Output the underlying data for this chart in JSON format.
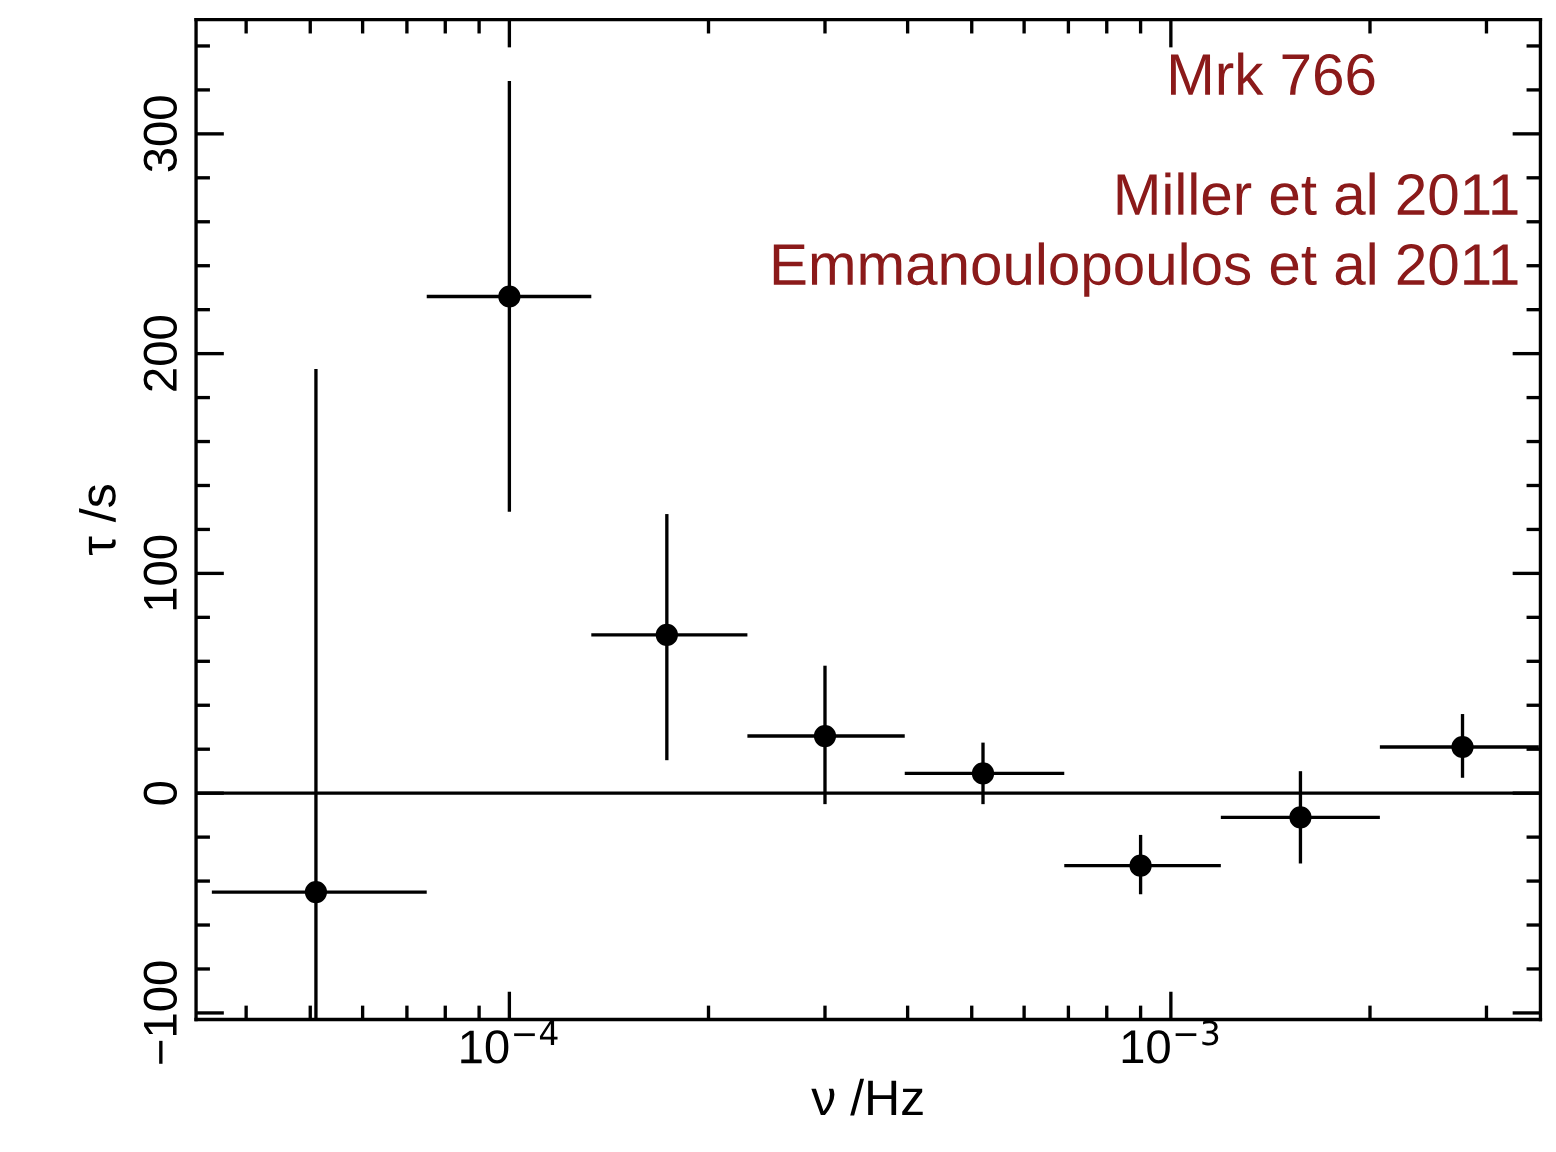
{
  "chart_data": {
    "type": "scatter",
    "xlabel": "ν /Hz",
    "ylabel": "τ /s",
    "log": "x",
    "x": [
      5.1e-05,
      0.0001,
      0.000173,
      0.0003,
      0.00052,
      0.0009,
      0.00157,
      0.00276
    ],
    "values": [
      -45,
      226,
      72,
      26,
      9,
      -33,
      -11,
      21
    ],
    "errors": [
      [
        -103,
        193
      ],
      [
        128,
        324
      ],
      [
        15,
        127
      ],
      [
        -5,
        58
      ],
      [
        -5,
        23
      ],
      [
        -46,
        -19
      ],
      [
        -32,
        10
      ],
      [
        7,
        36
      ]
    ],
    "xerrors": [
      [
        3.55e-05,
        7.5e-05
      ],
      [
        7.5e-05,
        0.000133
      ],
      [
        0.000133,
        0.000229
      ],
      [
        0.000229,
        0.000396
      ],
      [
        0.000396,
        0.00069
      ],
      [
        0.00069,
        0.00119
      ],
      [
        0.00119,
        0.00207
      ],
      [
        0.00207,
        0.0036
      ]
    ],
    "color": "#000000",
    "marker": "circle",
    "xlim": [
      3.36e-05,
      0.00362
    ],
    "ylim": [
      -103,
      352
    ],
    "xticks": [
      {
        "value": 0.0001,
        "label": "10$^{−4}$"
      },
      {
        "value": 0.001,
        "label": "10$^{−3}$"
      }
    ],
    "yticks": [
      {
        "value": -100,
        "label": "−100"
      },
      0,
      100,
      200,
      300
    ],
    "ref_lines": [
      {
        "axis": "y",
        "value": 0,
        "color": "#000000"
      }
    ],
    "annotations": [
      "Mrk 766",
      "Miller et al 2011",
      "Emmanoulopoulos et al 2011"
    ],
    "grid": false,
    "legend": false
  }
}
